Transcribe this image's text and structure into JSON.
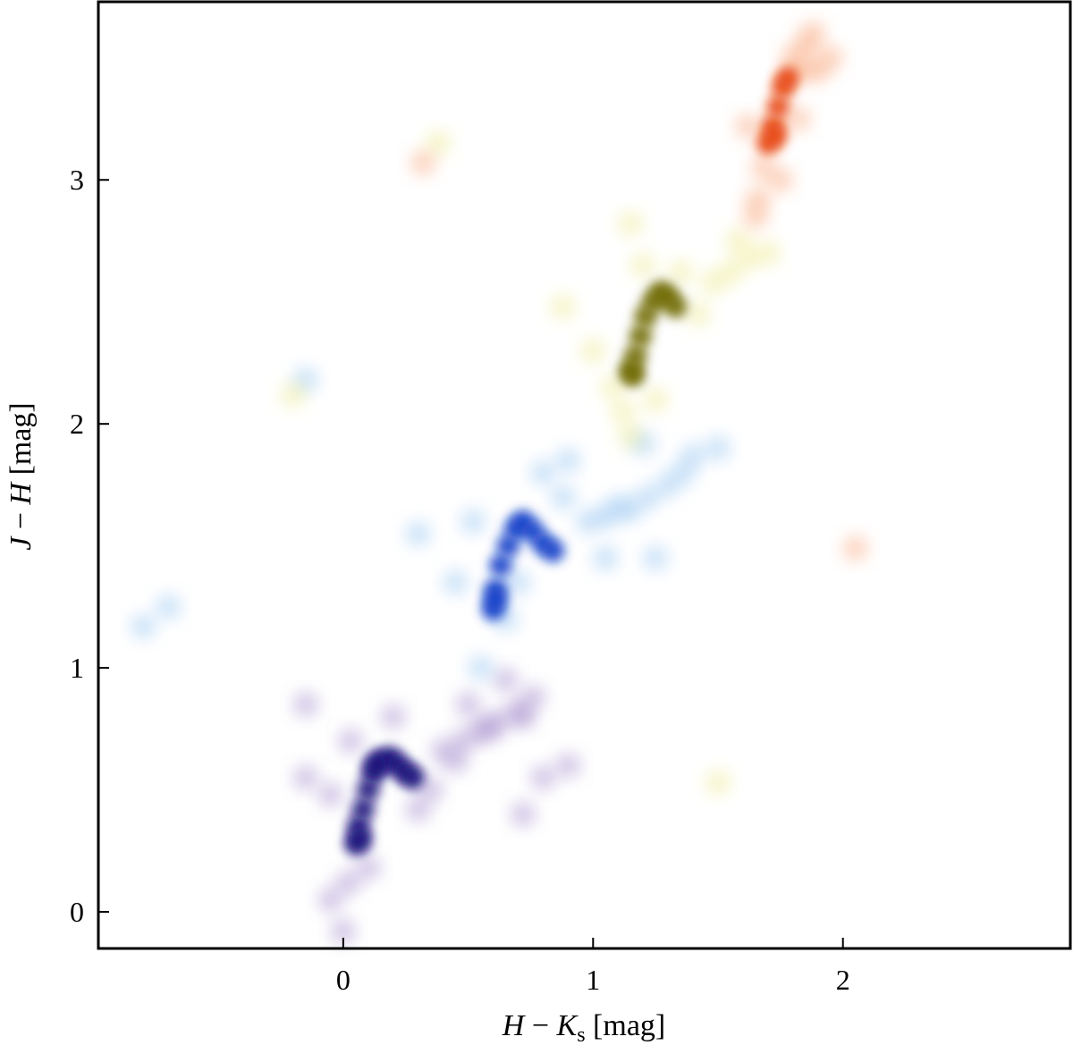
{
  "chart_data": {
    "type": "scatter",
    "title": "",
    "xlabel": "H − K_s [mag]",
    "ylabel": "J − H [mag]",
    "xlabel_parts": {
      "var1": "H",
      "op": " − ",
      "var2": "K",
      "sub": "s",
      "unit": " [mag]"
    },
    "ylabel_parts": {
      "var1": "J",
      "op": " − ",
      "var2": "H",
      "unit": " [mag]"
    },
    "xlim": [
      -0.98,
      2.91
    ],
    "ylim": [
      -0.15,
      3.73
    ],
    "xticks": [
      0,
      1,
      2
    ],
    "yticks": [
      0,
      1,
      2,
      3
    ],
    "grid": false,
    "legend": "none",
    "style": "blurred point density clouds",
    "series": [
      {
        "color": "#1a0b7a",
        "halo": "#9b82c8",
        "points": [
          [
            0.05,
            0.28
          ],
          [
            0.06,
            0.35
          ],
          [
            0.08,
            0.42
          ],
          [
            0.1,
            0.5
          ],
          [
            0.12,
            0.57
          ],
          [
            0.15,
            0.62
          ],
          [
            0.19,
            0.63
          ],
          [
            0.22,
            0.6
          ],
          [
            0.25,
            0.57
          ],
          [
            0.28,
            0.55
          ],
          [
            0.07,
            0.3
          ],
          [
            0.13,
            0.6
          ]
        ],
        "halo_points": [
          [
            0.4,
            0.66
          ],
          [
            0.48,
            0.7
          ],
          [
            0.55,
            0.74
          ],
          [
            0.62,
            0.78
          ],
          [
            0.7,
            0.82
          ],
          [
            0.76,
            0.88
          ],
          [
            0.72,
            0.8
          ],
          [
            0.58,
            0.75
          ],
          [
            0.02,
            0.12
          ],
          [
            -0.05,
            0.05
          ],
          [
            0.0,
            -0.08
          ],
          [
            0.1,
            0.18
          ],
          [
            -0.05,
            0.48
          ],
          [
            0.3,
            0.42
          ],
          [
            0.35,
            0.5
          ],
          [
            0.45,
            0.62
          ],
          [
            -0.15,
            0.55
          ],
          [
            0.2,
            0.8
          ],
          [
            -0.15,
            0.85
          ],
          [
            0.72,
            0.4
          ],
          [
            0.8,
            0.55
          ],
          [
            0.9,
            0.6
          ],
          [
            0.65,
            0.95
          ],
          [
            0.5,
            0.85
          ],
          [
            0.03,
            0.7
          ]
        ]
      },
      {
        "color": "#0a3dc8",
        "halo": "#8ec0f0",
        "points": [
          [
            0.6,
            1.24
          ],
          [
            0.61,
            1.32
          ],
          [
            0.63,
            1.42
          ],
          [
            0.66,
            1.5
          ],
          [
            0.69,
            1.57
          ],
          [
            0.72,
            1.6
          ],
          [
            0.76,
            1.56
          ],
          [
            0.8,
            1.51
          ],
          [
            0.84,
            1.48
          ],
          [
            0.61,
            1.28
          ]
        ],
        "halo_points": [
          [
            1.05,
            1.62
          ],
          [
            1.15,
            1.65
          ],
          [
            1.22,
            1.7
          ],
          [
            1.3,
            1.75
          ],
          [
            1.36,
            1.8
          ],
          [
            1.4,
            1.87
          ],
          [
            1.1,
            1.66
          ],
          [
            0.98,
            1.6
          ],
          [
            0.55,
            1.0
          ],
          [
            0.52,
            1.6
          ],
          [
            0.8,
            1.8
          ],
          [
            0.9,
            1.85
          ],
          [
            0.45,
            1.35
          ],
          [
            0.3,
            1.55
          ],
          [
            0.7,
            1.35
          ],
          [
            1.05,
            1.45
          ],
          [
            1.25,
            1.45
          ],
          [
            1.5,
            1.9
          ],
          [
            -0.8,
            1.17
          ],
          [
            -0.7,
            1.25
          ],
          [
            -0.15,
            2.18
          ],
          [
            0.65,
            1.2
          ],
          [
            0.88,
            1.7
          ],
          [
            1.2,
            1.92
          ]
        ]
      },
      {
        "color": "#6f6a00",
        "halo": "#ece88a",
        "points": [
          [
            1.16,
            2.2
          ],
          [
            1.17,
            2.28
          ],
          [
            1.19,
            2.36
          ],
          [
            1.21,
            2.44
          ],
          [
            1.24,
            2.5
          ],
          [
            1.27,
            2.54
          ],
          [
            1.3,
            2.52
          ],
          [
            1.33,
            2.48
          ],
          [
            1.15,
            2.22
          ]
        ],
        "halo_points": [
          [
            1.12,
            2.05
          ],
          [
            1.15,
            1.95
          ],
          [
            1.08,
            2.15
          ],
          [
            1.2,
            2.65
          ],
          [
            1.35,
            2.62
          ],
          [
            1.42,
            2.45
          ],
          [
            1.48,
            2.58
          ],
          [
            1.55,
            2.62
          ],
          [
            1.62,
            2.68
          ],
          [
            1.7,
            2.7
          ],
          [
            1.15,
            2.82
          ],
          [
            0.88,
            2.48
          ],
          [
            -0.2,
            2.12
          ],
          [
            0.38,
            3.15
          ],
          [
            1.5,
            0.53
          ],
          [
            1.0,
            2.3
          ],
          [
            1.25,
            2.1
          ],
          [
            1.58,
            2.75
          ]
        ]
      },
      {
        "color": "#e8450a",
        "halo": "#f8a070",
        "points": [
          [
            1.7,
            3.15
          ],
          [
            1.72,
            3.22
          ],
          [
            1.74,
            3.3
          ],
          [
            1.76,
            3.38
          ],
          [
            1.78,
            3.42
          ],
          [
            1.73,
            3.18
          ]
        ],
        "halo_points": [
          [
            1.68,
            3.05
          ],
          [
            1.66,
            2.92
          ],
          [
            1.65,
            2.85
          ],
          [
            1.8,
            3.5
          ],
          [
            1.85,
            3.55
          ],
          [
            1.88,
            3.6
          ],
          [
            1.84,
            3.45
          ],
          [
            1.9,
            3.45
          ],
          [
            1.62,
            3.22
          ],
          [
            1.95,
            3.5
          ],
          [
            0.32,
            3.07
          ],
          [
            2.05,
            1.49
          ],
          [
            1.82,
            3.25
          ],
          [
            1.75,
            3.0
          ]
        ]
      }
    ]
  }
}
